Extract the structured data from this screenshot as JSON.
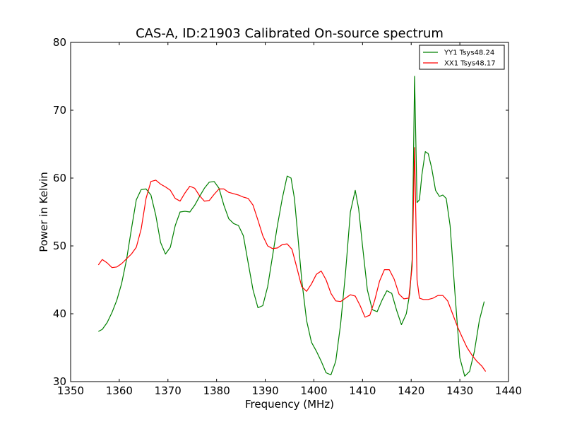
{
  "chart_data": {
    "type": "line",
    "title": "CAS-A, ID:21903 Calibrated On-source spectrum",
    "xlabel": "Frequency (MHz)",
    "ylabel": "Power in Kelvin",
    "xlim": [
      1350,
      1440
    ],
    "ylim": [
      30,
      80
    ],
    "xticks": [
      "1350",
      "1360",
      "1370",
      "1380",
      "1390",
      "1400",
      "1410",
      "1420",
      "1430",
      "1440"
    ],
    "yticks": [
      "30",
      "40",
      "50",
      "60",
      "70",
      "80"
    ],
    "grid": false,
    "legend_position": "top-right",
    "series": [
      {
        "name": "YY1 Tsys48.24",
        "color": "#008000",
        "x": [
          1355.7,
          1356.5,
          1357.5,
          1358.5,
          1359.5,
          1360.5,
          1361.5,
          1362.5,
          1363.5,
          1364.5,
          1365.5,
          1366.5,
          1367.5,
          1368.5,
          1369.5,
          1370.5,
          1371.5,
          1372.5,
          1373.5,
          1374.5,
          1375.5,
          1376.5,
          1377.5,
          1378.5,
          1379.5,
          1380.5,
          1381.5,
          1382.5,
          1383.5,
          1384.5,
          1385.5,
          1386.5,
          1387.5,
          1388.5,
          1389.5,
          1390.5,
          1391.5,
          1392.5,
          1393.5,
          1394.5,
          1395.3,
          1396.0,
          1396.7,
          1397.5,
          1398.5,
          1399.5,
          1400.5,
          1401.5,
          1402.5,
          1403.5,
          1404.5,
          1405.5,
          1406.5,
          1407.5,
          1408.5,
          1409.2,
          1410.0,
          1411.0,
          1412.0,
          1413.0,
          1414.0,
          1415.0,
          1416.0,
          1417.0,
          1418.0,
          1419.0,
          1419.7,
          1420.2,
          1420.7,
          1421.2,
          1421.7,
          1422.2,
          1422.9,
          1423.5,
          1424.2,
          1425.0,
          1425.8,
          1426.5,
          1427.2,
          1428.0,
          1429.0,
          1430.0,
          1431.0,
          1432.0,
          1433.0,
          1434.0,
          1435.0
        ],
        "y": [
          37.4,
          37.7,
          38.7,
          40.2,
          42.0,
          44.5,
          48.0,
          52.5,
          56.8,
          58.3,
          58.4,
          57.5,
          54.5,
          50.5,
          48.8,
          49.8,
          53.0,
          55.0,
          55.1,
          55.0,
          56.0,
          57.3,
          58.5,
          59.4,
          59.5,
          58.5,
          56.0,
          54.0,
          53.3,
          53.0,
          51.5,
          47.5,
          43.5,
          40.9,
          41.2,
          44.0,
          48.5,
          53.0,
          57.0,
          60.3,
          60.0,
          57.0,
          51.5,
          45.0,
          39.0,
          35.8,
          34.5,
          33.0,
          31.3,
          31.0,
          33.0,
          38.5,
          46.0,
          55.0,
          58.2,
          55.5,
          50.0,
          43.5,
          40.6,
          40.3,
          42.0,
          43.4,
          43.0,
          40.5,
          38.4,
          40.0,
          43.0,
          48.0,
          75.0,
          56.4,
          56.8,
          60.5,
          63.9,
          63.6,
          61.5,
          58.2,
          57.3,
          57.5,
          57.0,
          53.0,
          43.0,
          33.5,
          30.8,
          31.5,
          34.5,
          39.0,
          41.8
        ]
      },
      {
        "name": "XX1 Tsys48.17",
        "color": "#ff0000",
        "x": [
          1355.7,
          1356.5,
          1357.5,
          1358.5,
          1359.5,
          1360.5,
          1361.5,
          1362.5,
          1363.5,
          1364.5,
          1365.5,
          1366.5,
          1367.5,
          1368.5,
          1369.5,
          1370.5,
          1371.5,
          1372.5,
          1373.5,
          1374.5,
          1375.5,
          1376.5,
          1377.5,
          1378.5,
          1379.5,
          1380.5,
          1381.5,
          1382.5,
          1383.5,
          1384.5,
          1385.5,
          1386.5,
          1387.5,
          1388.5,
          1389.5,
          1390.5,
          1391.5,
          1392.5,
          1393.5,
          1394.5,
          1395.5,
          1396.5,
          1397.5,
          1398.5,
          1399.5,
          1400.5,
          1401.5,
          1402.5,
          1403.5,
          1404.5,
          1405.5,
          1406.5,
          1407.5,
          1408.5,
          1409.5,
          1410.5,
          1411.5,
          1412.5,
          1413.5,
          1414.5,
          1415.5,
          1416.5,
          1417.5,
          1418.5,
          1419.5,
          1420.2,
          1420.7,
          1421.2,
          1421.7,
          1422.5,
          1423.5,
          1424.5,
          1425.5,
          1426.5,
          1427.5,
          1428.5,
          1429.5,
          1430.5,
          1431.5,
          1432.5,
          1433.5,
          1434.5,
          1435.3
        ],
        "y": [
          47.2,
          48.0,
          47.5,
          46.8,
          46.9,
          47.4,
          48.1,
          48.8,
          49.8,
          52.5,
          57.0,
          59.5,
          59.7,
          59.1,
          58.7,
          58.2,
          57.0,
          56.6,
          57.8,
          58.8,
          58.5,
          57.4,
          56.6,
          56.7,
          57.6,
          58.4,
          58.4,
          57.9,
          57.7,
          57.5,
          57.2,
          57.0,
          56.0,
          53.8,
          51.5,
          50.0,
          49.6,
          49.7,
          50.2,
          50.3,
          49.5,
          46.8,
          44.0,
          43.3,
          44.4,
          45.8,
          46.3,
          45.0,
          43.0,
          41.9,
          41.8,
          42.3,
          42.8,
          42.6,
          41.2,
          39.5,
          39.8,
          42.0,
          44.8,
          46.5,
          46.5,
          45.1,
          42.9,
          42.2,
          42.3,
          47.0,
          64.5,
          45.0,
          42.3,
          42.1,
          42.1,
          42.3,
          42.7,
          42.7,
          41.9,
          40.0,
          38.1,
          36.5,
          35.0,
          33.9,
          33.0,
          32.3,
          31.5
        ]
      }
    ]
  }
}
